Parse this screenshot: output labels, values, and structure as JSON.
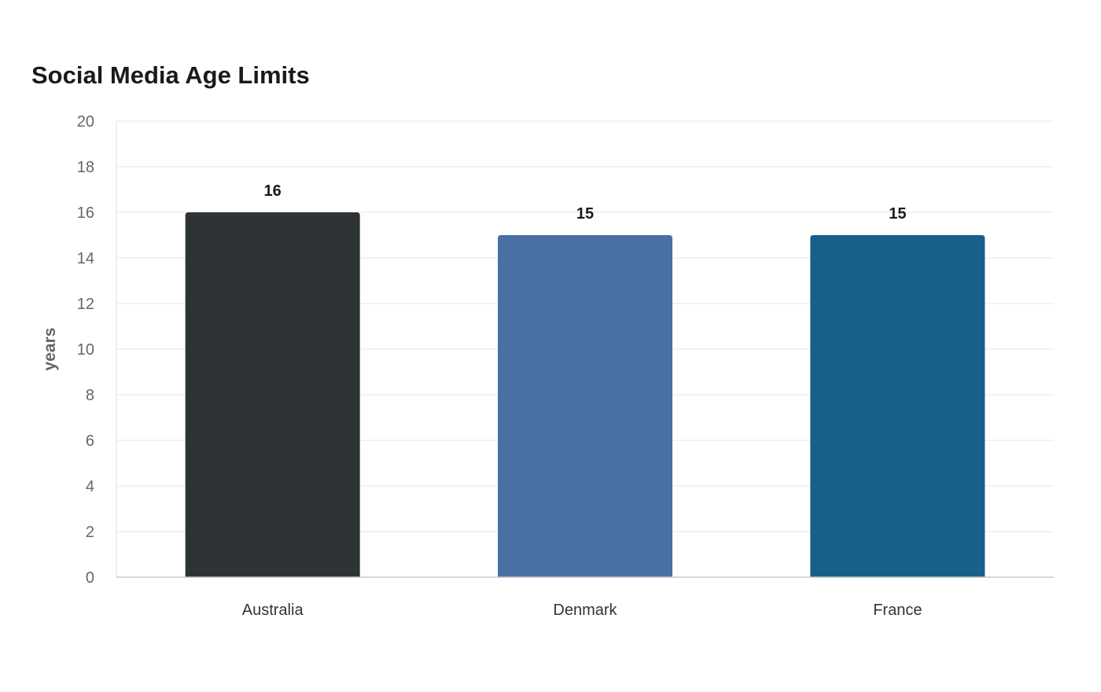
{
  "chart_data": {
    "type": "bar",
    "title": "Social Media Age Limits",
    "xlabel": "",
    "ylabel": "years",
    "categories": [
      "Australia",
      "Denmark",
      "France"
    ],
    "values": [
      16,
      15,
      15
    ],
    "colors": [
      "#2e3436",
      "#4a6fa5",
      "#176088"
    ],
    "ylim": [
      0,
      20
    ],
    "yticks": [
      0,
      2,
      4,
      6,
      8,
      10,
      12,
      14,
      16,
      18,
      20
    ],
    "grid": true,
    "legend": "none"
  }
}
